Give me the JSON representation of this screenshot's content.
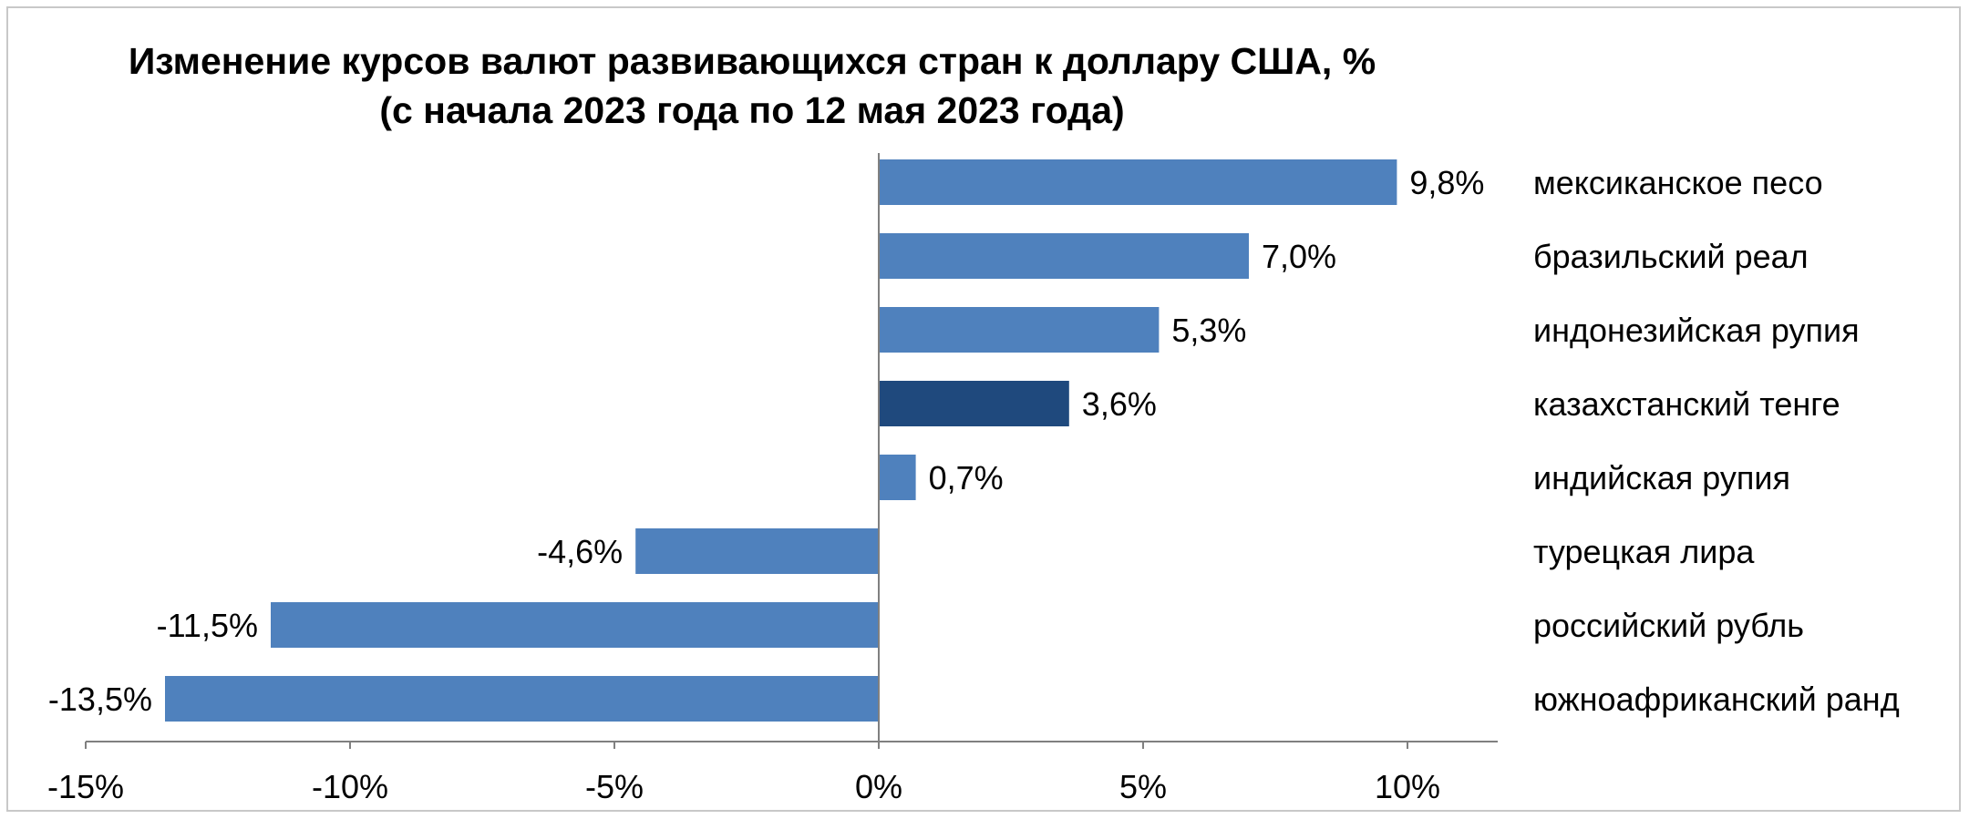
{
  "chart_data": {
    "type": "bar",
    "orientation": "horizontal",
    "title": "Изменение курсов валют развивающихся стран к доллару США, %",
    "subtitle": "(с начала 2023 года по 12 мая 2023 года)",
    "categories": [
      "мексиканское песо",
      "бразильский реал",
      "индонезийская рупия",
      "казахстанский тенге",
      "индийская рупия",
      "турецкая лира",
      "российский рубль",
      "южноафриканский ранд"
    ],
    "values": [
      9.8,
      7.0,
      5.3,
      3.6,
      0.7,
      -4.6,
      -11.5,
      -13.5
    ],
    "data_labels": [
      "9,8%",
      "7,0%",
      "5,3%",
      "3,6%",
      "0,7%",
      "-4,6%",
      "-11,5%",
      "-13,5%"
    ],
    "xlim": [
      -15,
      11.5
    ],
    "xticks": [
      -15,
      -10,
      -5,
      0,
      5,
      10
    ],
    "xtick_labels": [
      "-15%",
      "-10%",
      "-5%",
      "0%",
      "5%",
      "10%"
    ],
    "grid": false,
    "legend": "none",
    "colors": {
      "bar": "#4f81bd",
      "highlight": "#1f497d",
      "highlight_category": "казахстанский тенге",
      "axis": "#808080"
    }
  }
}
